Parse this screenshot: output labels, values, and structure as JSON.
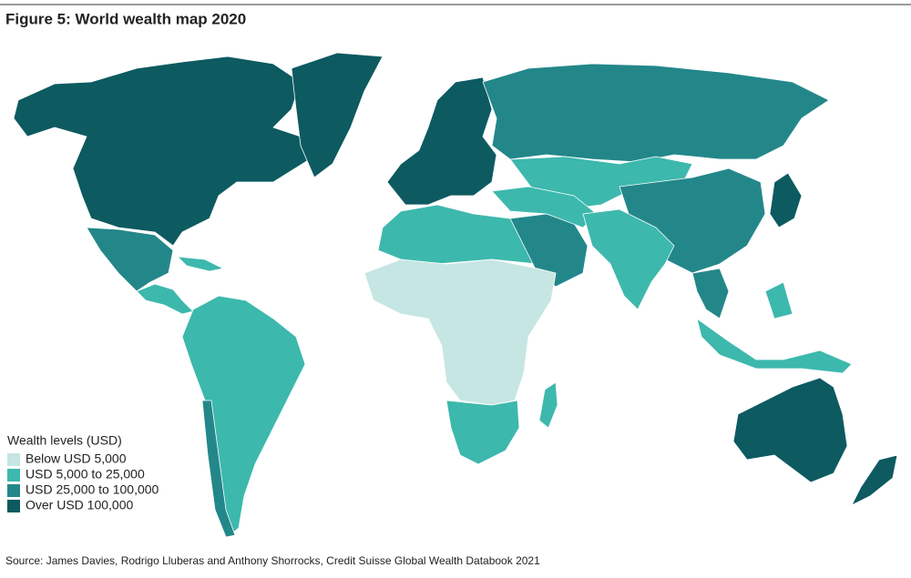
{
  "title": "Figure 5: World wealth map 2020",
  "legend": {
    "title": "Wealth levels (USD)",
    "items": [
      {
        "label": "Below USD 5,000",
        "color": "#c6e6e3"
      },
      {
        "label": "USD 5,000 to 25,000",
        "color": "#3db8ad"
      },
      {
        "label": "USD 25,000 to 100,000",
        "color": "#23878a"
      },
      {
        "label": "Over USD 100,000",
        "color": "#0d5a61"
      }
    ]
  },
  "source": "Source: James Davies, Rodrigo Lluberas and Anthony Shorrocks, Credit Suisse Global Wealth Databook 2021"
}
